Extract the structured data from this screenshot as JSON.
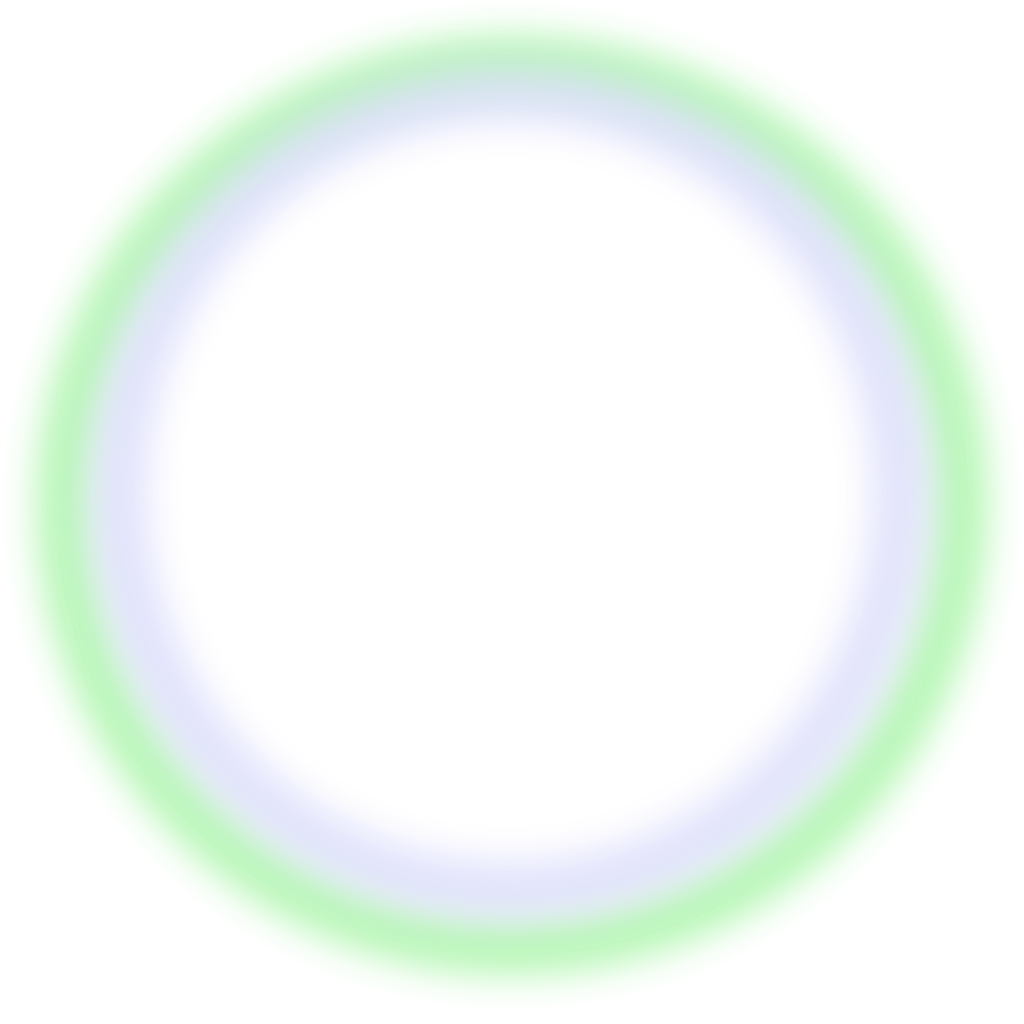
{
  "scene": {
    "background_color": "#ffffff",
    "outer_ring_color": "#7df07a",
    "inner_ring_color": "#d6d8fb",
    "center_color": "#ffffff"
  }
}
